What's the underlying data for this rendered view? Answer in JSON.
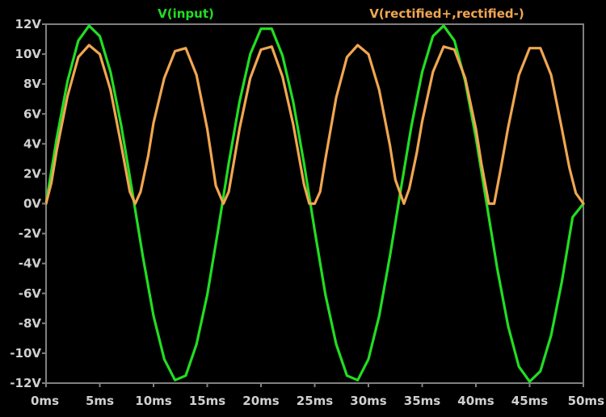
{
  "chart_data": {
    "type": "line",
    "xlabel": "",
    "ylabel": "",
    "xlim": [
      0,
      50
    ],
    "ylim": [
      -12,
      12
    ],
    "x_ticks": [
      0,
      5,
      10,
      15,
      20,
      25,
      30,
      35,
      40,
      45,
      50
    ],
    "x_tick_labels": [
      "0ms",
      "5ms",
      "10ms",
      "15ms",
      "20ms",
      "25ms",
      "30ms",
      "35ms",
      "40ms",
      "45ms",
      "50ms"
    ],
    "y_ticks": [
      12,
      10,
      8,
      6,
      4,
      2,
      0,
      -2,
      -4,
      -6,
      -8,
      -10,
      -12
    ],
    "y_tick_labels": [
      "12V",
      "10V",
      "8V",
      "6V",
      "4V",
      "2V",
      "0V",
      "-2V",
      "-4V",
      "-6V",
      "-8V",
      "-10V",
      "-12V"
    ],
    "grid": false,
    "background": "#000000",
    "axis_color": "#808080",
    "series": [
      {
        "name": "V(input)",
        "color": "#22dd22",
        "x": [
          0,
          1,
          2,
          3,
          4,
          5,
          6,
          7,
          8,
          9,
          10,
          11,
          12,
          13,
          14,
          15,
          16,
          17,
          18,
          19,
          20,
          21,
          22,
          23,
          24,
          25,
          26,
          27,
          28,
          29,
          30,
          31,
          32,
          33,
          34,
          35,
          36,
          37,
          38,
          39,
          40,
          41,
          42,
          43,
          44,
          45,
          46,
          47,
          48,
          49,
          50
        ],
        "y": [
          0,
          4.4,
          8.2,
          10.9,
          11.9,
          11.2,
          8.8,
          5.2,
          0.9,
          -3.5,
          -7.5,
          -10.4,
          -11.8,
          -11.5,
          -9.4,
          -6.1,
          -1.8,
          2.7,
          6.8,
          10.0,
          11.7,
          11.7,
          9.9,
          6.8,
          2.7,
          -1.8,
          -6.1,
          -9.4,
          -11.5,
          -11.8,
          -10.4,
          -7.5,
          -3.5,
          0.9,
          5.2,
          8.8,
          11.2,
          11.9,
          10.9,
          8.2,
          4.4,
          0.0,
          -4.4,
          -8.2,
          -10.9,
          -11.9,
          -11.2,
          -8.8,
          -5.2,
          -0.9,
          0
        ]
      },
      {
        "name": "V(rectified+,rectified-)",
        "color": "#f0a650",
        "x": [
          0,
          0.5,
          1,
          2,
          3,
          4,
          5,
          6,
          7,
          7.8,
          8.3,
          8.8,
          9.5,
          10,
          11,
          12,
          13,
          14,
          15,
          15.8,
          16.5,
          17,
          17.5,
          18,
          19,
          20,
          21,
          22,
          23,
          24,
          24.5,
          25,
          25.5,
          26,
          27,
          28,
          29,
          30,
          31,
          32,
          32.5,
          33.3,
          33.8,
          34.5,
          35,
          36,
          37,
          38,
          39,
          40,
          40.5,
          41.2,
          41.7,
          42.3,
          43,
          44,
          45,
          46,
          47,
          48,
          48.7,
          49.3,
          50
        ],
        "y": [
          0,
          1.4,
          3.6,
          7.2,
          9.8,
          10.6,
          10.0,
          7.6,
          3.9,
          0.8,
          0,
          0.8,
          3.2,
          5.4,
          8.4,
          10.2,
          10.4,
          8.6,
          5.0,
          1.2,
          0,
          0.8,
          2.9,
          5.0,
          8.4,
          10.3,
          10.5,
          8.5,
          5.3,
          1.3,
          0,
          0,
          0.8,
          3.0,
          7.1,
          9.8,
          10.6,
          10.0,
          7.6,
          3.9,
          1.6,
          0,
          1.0,
          3.4,
          5.5,
          8.8,
          10.5,
          10.3,
          8.4,
          5.0,
          2.7,
          0,
          0,
          2.3,
          5.1,
          8.6,
          10.4,
          10.4,
          8.6,
          5.0,
          2.4,
          0.7,
          0
        ]
      }
    ]
  }
}
